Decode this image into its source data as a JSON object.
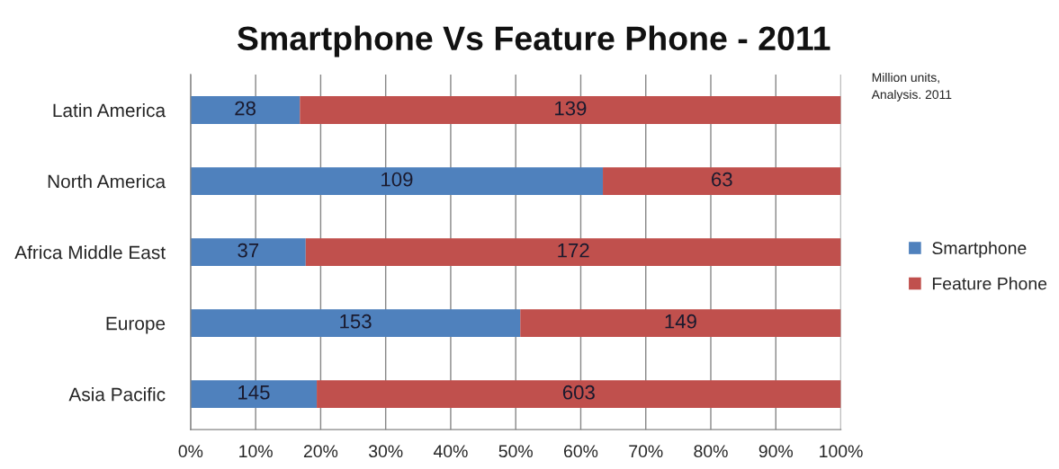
{
  "chart_data": {
    "type": "bar",
    "orientation": "horizontal",
    "stacked": true,
    "title": "Smartphone Vs Feature Phone - 2011",
    "annotations": [
      "Million units,\nAnalysis. 2011",
      "28",
      "139",
      "109",
      "63",
      "37",
      "172",
      "153",
      "149",
      "145",
      "603"
    ],
    "categories": [
      "Latin America",
      "North America",
      "Africa Middle East",
      "Europe",
      "Asia Pacific"
    ],
    "series": [
      {
        "name": "Smartphone",
        "color": "#4f81bd",
        "values": [
          16.8,
          63.4,
          17.7,
          50.7,
          19.4
        ]
      },
      {
        "name": "Feature Phone",
        "color": "#c0504d",
        "values": [
          83.2,
          36.6,
          82.3,
          49.3,
          80.6
        ]
      }
    ],
    "xlim": [
      0,
      100
    ],
    "xticks": [
      {
        "value": 0,
        "label": "0%"
      },
      {
        "value": 10,
        "label": "10%"
      },
      {
        "value": 20,
        "label": "20%"
      },
      {
        "value": 30,
        "label": "30%"
      },
      {
        "value": 40,
        "label": "40%"
      },
      {
        "value": 50,
        "label": "50%"
      },
      {
        "value": 60,
        "label": "60%"
      },
      {
        "value": 70,
        "label": "70%"
      },
      {
        "value": 80,
        "label": "80%"
      },
      {
        "value": 90,
        "label": "90%"
      },
      {
        "value": 100,
        "label": "100%"
      }
    ],
    "grid": "x",
    "legend": "right"
  }
}
